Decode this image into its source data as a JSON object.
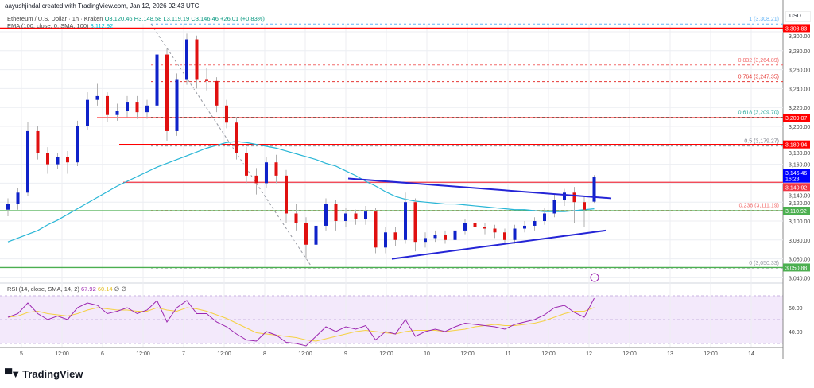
{
  "credit": "aayushjindal created with TradingView.com, Jan 12, 2026 02:43 UTC",
  "legend": {
    "symbol": "Ethereum / U.S. Dollar · 1h · Kraken",
    "open": "O3,120.46",
    "high": "H3,148.58",
    "low": "L3,119.19",
    "close": "C3,146.46",
    "change": "+26.01 (+0.83%)",
    "ema_label": "EMA (100, close, 0, SMA, 100)",
    "ema_value": "3,112.92"
  },
  "rsi_legend": {
    "label": "RSI (14, close, SMA, 14, 2)",
    "rsi": "67.92",
    "sma": "60.14",
    "extra1": "∅",
    "extra2": "∅"
  },
  "currency": "USD",
  "logo_text": "TradingView",
  "chart_data": {
    "type": "candlestick",
    "title": "Ethereum / U.S. Dollar · 1h · Kraken",
    "ylim": [
      3030,
      3315
    ],
    "grid": true,
    "y_ticks": [
      "3,300.00",
      "3,280.00",
      "3,260.00",
      "3,240.00",
      "3,220.00",
      "3,200.00",
      "3,180.00",
      "3,160.00",
      "3,140.00",
      "3,120.00",
      "3,100.00",
      "3,080.00",
      "3,060.00",
      "3,040.00"
    ],
    "x_ticks": [
      "5",
      "12:00",
      "6",
      "12:00",
      "7",
      "12:00",
      "8",
      "12:00",
      "9",
      "12:00",
      "10",
      "12:00",
      "11",
      "12:00",
      "12",
      "12:00",
      "13",
      "12:00",
      "14"
    ],
    "candles": [
      [
        3112,
        3124,
        3105,
        3118
      ],
      [
        3118,
        3135,
        3112,
        3130
      ],
      [
        3130,
        3205,
        3126,
        3195
      ],
      [
        3195,
        3200,
        3165,
        3172
      ],
      [
        3172,
        3178,
        3150,
        3160
      ],
      [
        3160,
        3172,
        3155,
        3168
      ],
      [
        3168,
        3174,
        3150,
        3162
      ],
      [
        3162,
        3206,
        3158,
        3200
      ],
      [
        3200,
        3236,
        3196,
        3228
      ],
      [
        3228,
        3245,
        3222,
        3232
      ],
      [
        3232,
        3236,
        3205,
        3212
      ],
      [
        3212,
        3224,
        3206,
        3216
      ],
      [
        3216,
        3232,
        3210,
        3226
      ],
      [
        3226,
        3232,
        3208,
        3215
      ],
      [
        3215,
        3228,
        3208,
        3222
      ],
      [
        3222,
        3300,
        3218,
        3276
      ],
      [
        3276,
        3282,
        3185,
        3195
      ],
      [
        3195,
        3256,
        3190,
        3250
      ],
      [
        3250,
        3298,
        3244,
        3292
      ],
      [
        3292,
        3296,
        3240,
        3250
      ],
      [
        3250,
        3262,
        3238,
        3248
      ],
      [
        3248,
        3252,
        3215,
        3222
      ],
      [
        3222,
        3228,
        3198,
        3204
      ],
      [
        3204,
        3210,
        3165,
        3172
      ],
      [
        3172,
        3178,
        3140,
        3148
      ],
      [
        3148,
        3156,
        3128,
        3140
      ],
      [
        3140,
        3168,
        3135,
        3162
      ],
      [
        3162,
        3170,
        3140,
        3148
      ],
      [
        3148,
        3154,
        3098,
        3108
      ],
      [
        3108,
        3118,
        3090,
        3098
      ],
      [
        3098,
        3104,
        3060,
        3075
      ],
      [
        3075,
        3100,
        3052,
        3095
      ],
      [
        3095,
        3124,
        3090,
        3118
      ],
      [
        3118,
        3122,
        3090,
        3100
      ],
      [
        3100,
        3114,
        3094,
        3108
      ],
      [
        3108,
        3112,
        3096,
        3102
      ],
      [
        3102,
        3116,
        3096,
        3110
      ],
      [
        3110,
        3114,
        3066,
        3072
      ],
      [
        3072,
        3094,
        3066,
        3088
      ],
      [
        3088,
        3094,
        3074,
        3080
      ],
      [
        3080,
        3130,
        3076,
        3120
      ],
      [
        3120,
        3124,
        3068,
        3078
      ],
      [
        3078,
        3088,
        3072,
        3082
      ],
      [
        3082,
        3090,
        3078,
        3085
      ],
      [
        3085,
        3090,
        3076,
        3080
      ],
      [
        3080,
        3096,
        3076,
        3090
      ],
      [
        3090,
        3102,
        3086,
        3098
      ],
      [
        3098,
        3100,
        3088,
        3094
      ],
      [
        3094,
        3098,
        3086,
        3092
      ],
      [
        3092,
        3096,
        3082,
        3088
      ],
      [
        3088,
        3092,
        3076,
        3080
      ],
      [
        3080,
        3096,
        3076,
        3092
      ],
      [
        3092,
        3100,
        3088,
        3095
      ],
      [
        3095,
        3104,
        3090,
        3100
      ],
      [
        3100,
        3114,
        3096,
        3108
      ],
      [
        3108,
        3128,
        3104,
        3122
      ],
      [
        3122,
        3134,
        3116,
        3130
      ],
      [
        3130,
        3136,
        3098,
        3120
      ],
      [
        3120,
        3126,
        3094,
        3112
      ],
      [
        3120.46,
        3148.58,
        3119.19,
        3146.46
      ]
    ],
    "ema": [
      3078,
      3082,
      3086,
      3090,
      3096,
      3101,
      3107,
      3113,
      3119,
      3125,
      3131,
      3137,
      3142,
      3147,
      3152,
      3157,
      3161,
      3165,
      3169,
      3173,
      3177,
      3180,
      3183,
      3184,
      3183,
      3181,
      3179,
      3177,
      3174,
      3171,
      3168,
      3165,
      3161,
      3158,
      3153,
      3148,
      3142,
      3137,
      3131,
      3126,
      3123,
      3121,
      3120,
      3119,
      3118,
      3118,
      3117,
      3116,
      3115,
      3114,
      3113,
      3112,
      3112,
      3111,
      3110,
      3110,
      3110,
      3111,
      3112,
      3112.92
    ],
    "rsi": {
      "ylim": [
        25,
        75
      ],
      "ticks": [
        "60.00",
        "40.00"
      ],
      "rsi": [
        52,
        55,
        64,
        55,
        50,
        53,
        50,
        60,
        64,
        62,
        55,
        57,
        60,
        55,
        58,
        66,
        48,
        60,
        66,
        55,
        55,
        48,
        44,
        38,
        33,
        32,
        40,
        37,
        31,
        30,
        28,
        36,
        44,
        40,
        44,
        42,
        45,
        33,
        40,
        38,
        50,
        36,
        40,
        42,
        40,
        44,
        47,
        46,
        45,
        44,
        42,
        46,
        48,
        50,
        54,
        60,
        62,
        56,
        52,
        67.92
      ],
      "sma": [
        52,
        53,
        56,
        57,
        55,
        54,
        53,
        55,
        58,
        60,
        59,
        58,
        58,
        57,
        57,
        60,
        58,
        57,
        60,
        59,
        57,
        54,
        51,
        47,
        43,
        39,
        38,
        37,
        36,
        35,
        33,
        32,
        34,
        36,
        38,
        40,
        41,
        40,
        39,
        38,
        40,
        41,
        41,
        41,
        40,
        41,
        42,
        44,
        45,
        46,
        45,
        45,
        46,
        47,
        49,
        52,
        55,
        57,
        57,
        60.14
      ]
    },
    "horizontal_levels": [
      {
        "price": 3303.83,
        "label": "3,303.83",
        "color": "#f00"
      },
      {
        "price": 3209.07,
        "label": "3,209.07",
        "color": "#f00"
      },
      {
        "price": 3180.94,
        "label": "3,180.94",
        "color": "#f00"
      },
      {
        "price": 3140.92,
        "label": "3,140.92",
        "color": "#f23645"
      },
      {
        "price": 3110.92,
        "label": "3,110.92",
        "color": "#4caf50"
      },
      {
        "price": 3050.88,
        "label": "3,050.88",
        "color": "#4caf50"
      }
    ],
    "last_price": {
      "label": "3,146.46",
      "countdown": "16:23",
      "color": "#0000ff"
    },
    "fib_levels": [
      {
        "label": "1 (3,308.21)",
        "price": 3308.21,
        "color": "#64b5f6"
      },
      {
        "label": "0.832 (3,264.89)",
        "price": 3264.89,
        "color": "#f26b6b"
      },
      {
        "label": "0.764 (3,247.35)",
        "price": 3247.35,
        "color": "#e53935"
      },
      {
        "label": "0.618 (3,209.70)",
        "price": 3209.7,
        "color": "#26a69a"
      },
      {
        "label": "0.5 (3,179.27)",
        "price": 3179.27,
        "color": "#787b86"
      },
      {
        "label": "0.236 (3,111.19)",
        "price": 3111.19,
        "color": "#f26b6b"
      },
      {
        "label": "0 (3,050.33)",
        "price": 3050.33,
        "color": "#9598a1"
      }
    ],
    "trendlines": [
      {
        "name": "upper",
        "from": 3145,
        "to": 3124,
        "color": "#2424d6"
      },
      {
        "name": "lower",
        "from": 3060,
        "to": 3090,
        "color": "#2424d6"
      }
    ],
    "colors": {
      "up": "#0f22c9",
      "down": "#e01010",
      "ema": "#29b6d6",
      "rsi": "#9c27b0",
      "rsi_sma": "#f5d142",
      "rsi_band": "#f3e9fb"
    }
  }
}
